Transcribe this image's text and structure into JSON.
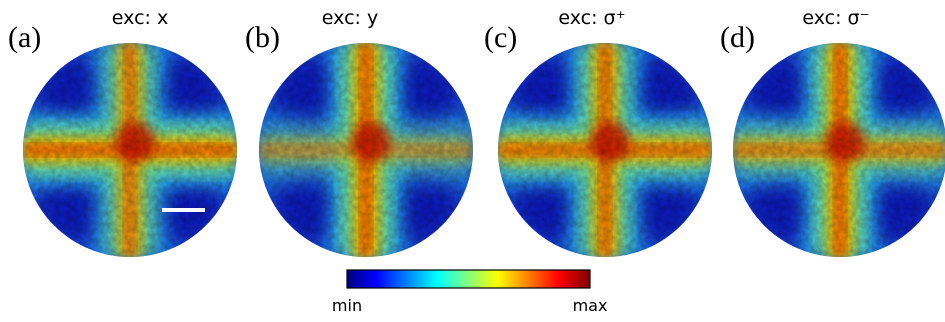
{
  "panels": [
    {
      "label": "(a)",
      "title": "exc: x"
    },
    {
      "label": "(b)",
      "title": "exc: y"
    },
    {
      "label": "(c)",
      "title": "exc: σ⁺"
    },
    {
      "label": "(d)",
      "title": "exc: σ⁻"
    }
  ],
  "colorbar": {
    "min_label": "min",
    "max_label": "max"
  }
}
